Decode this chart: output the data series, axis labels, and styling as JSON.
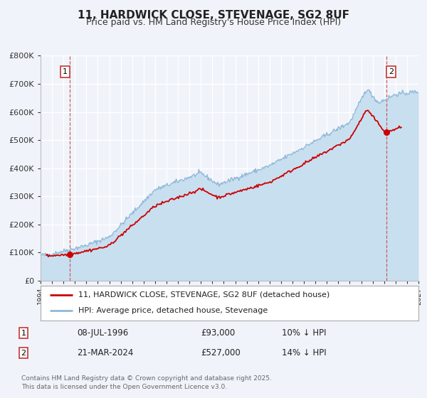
{
  "title": "11, HARDWICK CLOSE, STEVENAGE, SG2 8UF",
  "subtitle": "Price paid vs. HM Land Registry's House Price Index (HPI)",
  "bg_color": "#f0f4fa",
  "xlim": [
    1994,
    2027
  ],
  "ylim": [
    0,
    800000
  ],
  "ytick_vals": [
    0,
    100000,
    200000,
    300000,
    400000,
    500000,
    600000,
    700000,
    800000
  ],
  "ytick_labels": [
    "£0",
    "£100K",
    "£200K",
    "£300K",
    "£400K",
    "£500K",
    "£600K",
    "£700K",
    "£800K"
  ],
  "sale1_date": 1996.52,
  "sale1_price": 93000,
  "sale1_text": "08-JUL-1996",
  "sale1_value": "£93,000",
  "sale1_hpi": "10% ↓ HPI",
  "sale2_date": 2024.22,
  "sale2_price": 527000,
  "sale2_text": "21-MAR-2024",
  "sale2_value": "£527,000",
  "sale2_hpi": "14% ↓ HPI",
  "red_line_color": "#cc0000",
  "blue_line_color": "#90b8d8",
  "blue_fill_color": "#c8dff0",
  "legend_label_red": "11, HARDWICK CLOSE, STEVENAGE, SG2 8UF (detached house)",
  "legend_label_blue": "HPI: Average price, detached house, Stevenage",
  "footer_text": "Contains HM Land Registry data © Crown copyright and database right 2025.\nThis data is licensed under the Open Government Licence v3.0.",
  "vline_color": "#cc4444"
}
